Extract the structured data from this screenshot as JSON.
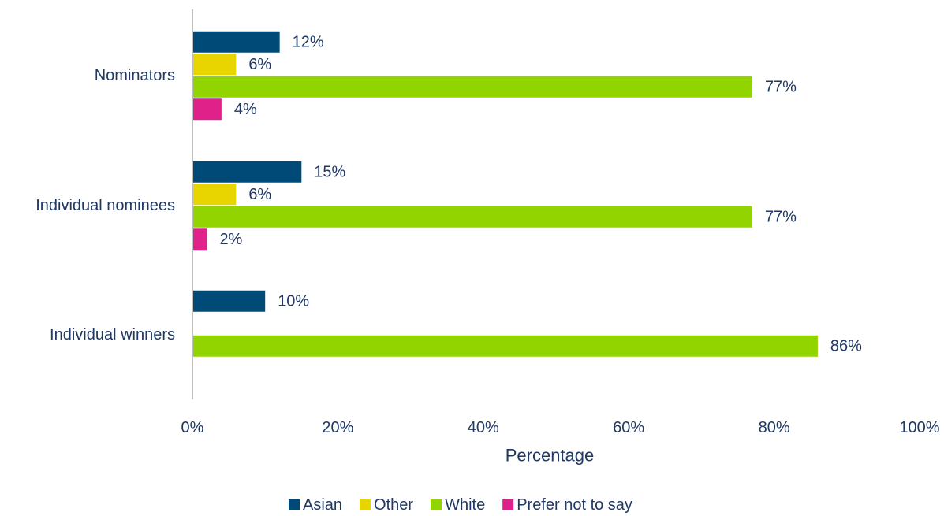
{
  "chart_data": {
    "type": "bar",
    "orientation": "horizontal",
    "categories": [
      "Nominators",
      "Individual nominees",
      "Individual winners"
    ],
    "series": [
      {
        "name": "Asian",
        "color": "#004a78",
        "values": [
          12,
          15,
          10
        ]
      },
      {
        "name": "Other",
        "color": "#e8d500",
        "values": [
          6,
          6,
          null
        ]
      },
      {
        "name": "White",
        "color": "#92d400",
        "values": [
          77,
          77,
          86
        ]
      },
      {
        "name": "Prefer not to say",
        "color": "#e0218a",
        "values": [
          4,
          2,
          null
        ]
      }
    ],
    "value_format": "percent",
    "xlim": [
      0,
      100
    ],
    "xticks": [
      "0%",
      "20%",
      "40%",
      "60%",
      "80%",
      "100%"
    ],
    "xlabel": "Percentage",
    "ylabel": "",
    "grid": false,
    "legend_position": "bottom"
  }
}
